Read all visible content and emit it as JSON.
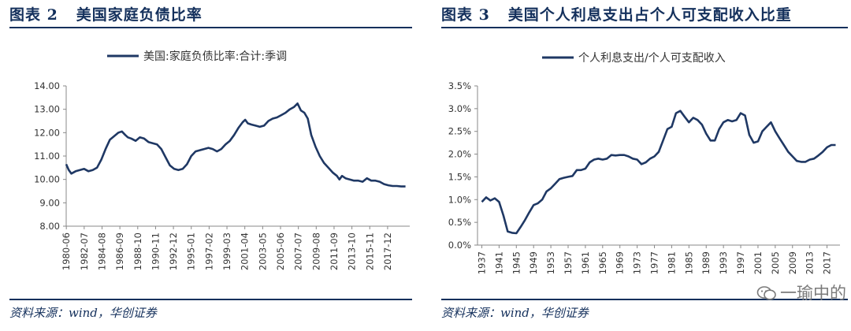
{
  "chart_data": [
    {
      "type": "line",
      "figure_label": "图表 2",
      "title": "美国家庭负债比率",
      "legend": "美国:家庭负债比率:合计:季调",
      "legend_position": "top",
      "source": "资料来源：wind，华创证券",
      "ylim": [
        8,
        14
      ],
      "yticks": [
        "8.00",
        "9.00",
        "10.00",
        "11.00",
        "12.00",
        "13.00",
        "14.00"
      ],
      "xticks": [
        "1980-06",
        "1982-07",
        "1984-08",
        "1986-09",
        "1988-10",
        "1990-11",
        "1992-12",
        "1995-01",
        "1997-02",
        "1999-03",
        "2001-04",
        "2003-05",
        "2005-06",
        "2007-07",
        "2009-08",
        "2011-09",
        "2013-10",
        "2015-11",
        "2017-12"
      ],
      "xlim": [
        1980.4,
        2020.5
      ],
      "grid": false,
      "color": "#1f3864",
      "series": [
        {
          "x": [
            1980.4,
            1980.7,
            1981.0,
            1981.5,
            1982.0,
            1982.5,
            1983.0,
            1983.5,
            1984.0,
            1984.5,
            1985.0,
            1985.5,
            1986.0,
            1986.5,
            1986.9,
            1987.3,
            1987.6,
            1988.0,
            1988.5,
            1989.0,
            1989.5,
            1990.0,
            1990.5,
            1991.0,
            1991.5,
            1992.0,
            1992.5,
            1993.0,
            1993.5,
            1994.0,
            1994.5,
            1995.0,
            1995.5,
            1996.0,
            1996.5,
            1997.0,
            1997.5,
            1998.0,
            1998.5,
            1999.0,
            1999.5,
            2000.0,
            2000.5,
            2001.0,
            2001.3,
            2001.6,
            2002.0,
            2002.5,
            2003.0,
            2003.5,
            2004.0,
            2004.5,
            2005.0,
            2005.5,
            2006.0,
            2006.5,
            2007.0,
            2007.4,
            2007.8,
            2008.2,
            2008.6,
            2009.0,
            2009.5,
            2010.0,
            2010.5,
            2011.0,
            2011.5,
            2012.0,
            2012.3,
            2012.6,
            2013.0,
            2013.5,
            2014.0,
            2014.5,
            2015.0,
            2015.5,
            2016.0,
            2016.5,
            2017.0,
            2017.5,
            2018.0,
            2018.5,
            2019.0,
            2019.5,
            2020.0
          ],
          "y": [
            10.65,
            10.4,
            10.25,
            10.35,
            10.4,
            10.45,
            10.35,
            10.4,
            10.5,
            10.85,
            11.3,
            11.7,
            11.85,
            12.0,
            12.05,
            11.9,
            11.8,
            11.75,
            11.65,
            11.8,
            11.75,
            11.6,
            11.55,
            11.5,
            11.3,
            10.95,
            10.6,
            10.45,
            10.4,
            10.45,
            10.65,
            11.0,
            11.2,
            11.25,
            11.3,
            11.35,
            11.3,
            11.2,
            11.3,
            11.5,
            11.65,
            11.9,
            12.2,
            12.45,
            12.55,
            12.4,
            12.35,
            12.3,
            12.25,
            12.3,
            12.5,
            12.6,
            12.65,
            12.75,
            12.85,
            13.0,
            13.1,
            13.25,
            12.95,
            12.85,
            12.6,
            11.9,
            11.4,
            11.0,
            10.7,
            10.5,
            10.3,
            10.15,
            10.0,
            10.15,
            10.05,
            10.0,
            9.95,
            9.95,
            9.9,
            10.05,
            9.95,
            9.95,
            9.9,
            9.8,
            9.75,
            9.72,
            9.72,
            9.7,
            9.7
          ]
        }
      ]
    },
    {
      "type": "line",
      "figure_label": "图表 3",
      "title": "美国个人利息支出占个人可支配收入比重",
      "legend": "个人利息支出/个人可支配收入",
      "legend_position": "top",
      "source": "资料来源：wind，华创证券",
      "ylim": [
        0,
        3.5
      ],
      "yticks": [
        "0.0%",
        "0.5%",
        "1.0%",
        "1.5%",
        "2.0%",
        "2.5%",
        "3.0%",
        "3.5%"
      ],
      "xticks": [
        "1937",
        "1941",
        "1945",
        "1949",
        "1953",
        "1957",
        "1961",
        "1965",
        "1969",
        "1973",
        "1977",
        "1981",
        "1985",
        "1989",
        "1993",
        "1997",
        "2001",
        "2005",
        "2009",
        "2013",
        "2017"
      ],
      "xlim": [
        1936,
        2020
      ],
      "grid": false,
      "color": "#1f3864",
      "series": [
        {
          "x": [
            1937,
            1938,
            1939,
            1940,
            1941,
            1942,
            1943,
            1944,
            1945,
            1946,
            1947,
            1948,
            1949,
            1950,
            1951,
            1952,
            1953,
            1954,
            1955,
            1956,
            1957,
            1958,
            1959,
            1960,
            1961,
            1962,
            1963,
            1964,
            1965,
            1966,
            1967,
            1968,
            1969,
            1970,
            1971,
            1972,
            1973,
            1974,
            1975,
            1976,
            1977,
            1978,
            1979,
            1980,
            1981,
            1982,
            1983,
            1984,
            1985,
            1986,
            1987,
            1988,
            1989,
            1990,
            1991,
            1992,
            1993,
            1994,
            1995,
            1996,
            1997,
            1998,
            1999,
            2000,
            2001,
            2002,
            2003,
            2004,
            2005,
            2006,
            2007,
            2008,
            2009,
            2010,
            2011,
            2012,
            2013,
            2014,
            2015,
            2016,
            2017,
            2018,
            2019
          ],
          "y": [
            0.95,
            1.05,
            0.98,
            1.03,
            0.95,
            0.65,
            0.3,
            0.27,
            0.26,
            0.4,
            0.55,
            0.72,
            0.88,
            0.92,
            1.0,
            1.18,
            1.25,
            1.35,
            1.45,
            1.48,
            1.5,
            1.52,
            1.65,
            1.65,
            1.68,
            1.82,
            1.88,
            1.9,
            1.88,
            1.9,
            1.98,
            1.97,
            1.98,
            1.98,
            1.95,
            1.9,
            1.88,
            1.78,
            1.82,
            1.9,
            1.95,
            2.05,
            2.3,
            2.55,
            2.6,
            2.9,
            2.95,
            2.82,
            2.7,
            2.8,
            2.75,
            2.65,
            2.45,
            2.3,
            2.3,
            2.55,
            2.7,
            2.75,
            2.72,
            2.75,
            2.9,
            2.85,
            2.42,
            2.25,
            2.28,
            2.5,
            2.6,
            2.7,
            2.5,
            2.35,
            2.2,
            2.05,
            1.95,
            1.85,
            1.83,
            1.83,
            1.88,
            1.9,
            1.97,
            2.05,
            2.15,
            2.2,
            2.2
          ]
        }
      ]
    }
  ],
  "watermark": "一瑜中的"
}
